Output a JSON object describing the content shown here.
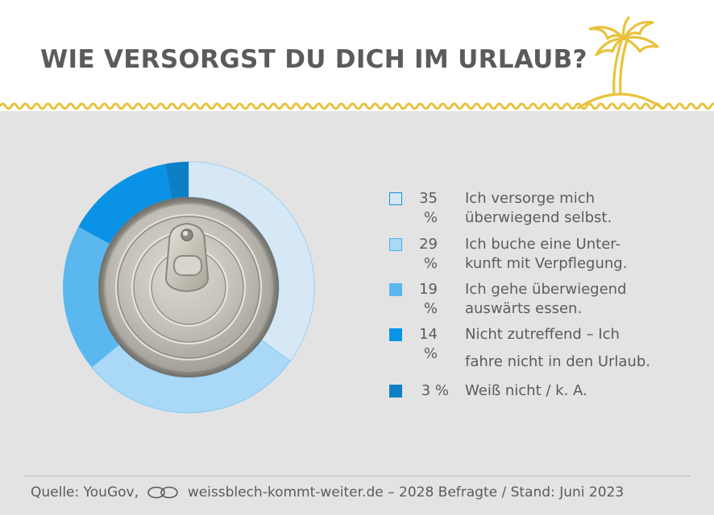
{
  "header": {
    "title": "WIE VERSORGST DU DICH IM URLAUB?"
  },
  "icons": {
    "header_decoration": "palm-island-icon",
    "footer_link": "chain-link-icon"
  },
  "colors": {
    "header_bg": "#ffffff",
    "page_bg": "#e3e3e3",
    "accent_yellow": "#e8c23c",
    "text": "#5c5c5c"
  },
  "chart_data": {
    "type": "pie",
    "style": "donut",
    "center_image": "tin-can-lid",
    "slices": [
      {
        "label": "Ich versorge mich überwiegend selbst.",
        "label_lines": [
          "Ich versorge mich",
          "überwiegend selbst."
        ],
        "value": 35,
        "value_text": "35 %",
        "color": "#d6e8f5"
      },
      {
        "label": "Ich buche eine Unterkunft mit Verpflegung.",
        "label_lines": [
          "Ich buche eine Unter-",
          "kunft mit Verpflegung."
        ],
        "value": 29,
        "value_text": "29 %",
        "color": "#a9d9f7"
      },
      {
        "label": "Ich gehe überwiegend auswärts essen.",
        "label_lines": [
          "Ich gehe überwiegend",
          "auswärts essen."
        ],
        "value": 19,
        "value_text": "19 %",
        "color": "#5ab8ef"
      },
      {
        "label": "Nicht zutreffend – Ich fahre nicht in den Urlaub.",
        "label_lines": [
          "Nicht zutreffend – Ich",
          "fahre nicht in den Urlaub."
        ],
        "value": 14,
        "value_text": "14 %",
        "color": "#0a93e6"
      },
      {
        "label": "Weiß nicht / k. A.",
        "label_lines": [
          "Weiß nicht / k. A."
        ],
        "value": 3,
        "value_text": "3 %",
        "color": "#0d7fc6"
      }
    ],
    "legend_position": "right",
    "grid": false
  },
  "footer": {
    "source_prefix": "Quelle: YouGov,",
    "source_rest": "weissblech-kommt-weiter.de – 2028 Befragte / Stand: Juni 2023"
  }
}
